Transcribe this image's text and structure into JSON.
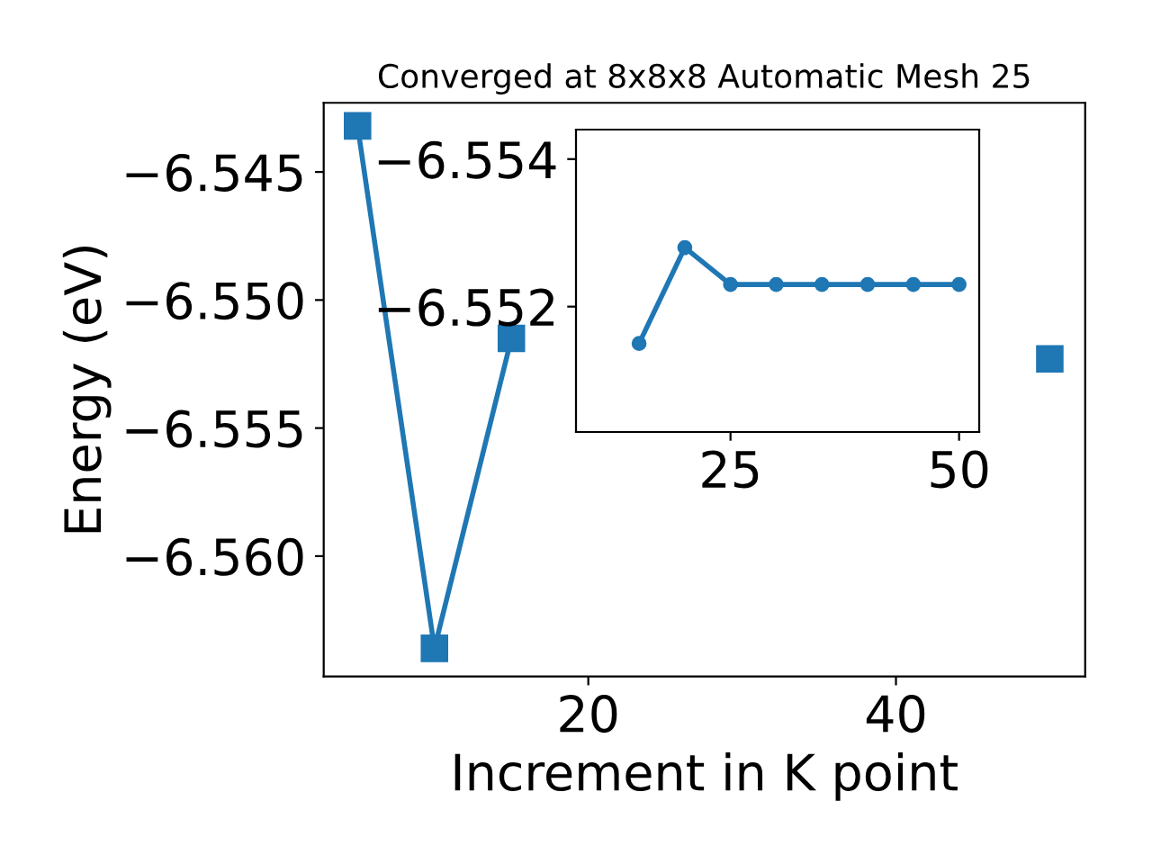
{
  "chart_data": [
    {
      "type": "line",
      "title": "Converged at 8x8x8 Automatic Mesh 25",
      "xlabel": "Increment in K point",
      "ylabel": "Energy (eV)",
      "x": [
        5,
        10,
        15,
        20,
        25,
        30,
        35,
        40,
        45,
        50
      ],
      "series": [
        {
          "color": "#1f77b4",
          "values": [
            -6.5432,
            -6.5636,
            -6.5515,
            null,
            null,
            null,
            null,
            null,
            null,
            -6.5523
          ]
        }
      ],
      "marker": "square",
      "line_style": "solid",
      "grid": false,
      "xlim": [
        2.8,
        52.3
      ],
      "xticks": [
        20,
        40
      ],
      "ylim": [
        -6.5647,
        -6.5423
      ],
      "yticks": [
        {
          "value": -6.545,
          "label": "−6.545"
        },
        {
          "value": -6.55,
          "label": "−6.550"
        },
        {
          "value": -6.555,
          "label": "−6.555"
        },
        {
          "value": -6.56,
          "label": "−6.560"
        }
      ]
    },
    {
      "type": "line",
      "x": [
        15,
        20,
        25,
        30,
        35,
        40,
        45,
        50
      ],
      "series": [
        {
          "color": "#1f77b4",
          "values": [
            -6.5515,
            -6.5528,
            -6.5523,
            -6.5523,
            -6.5523,
            -6.5523,
            -6.5523,
            -6.5523
          ]
        }
      ],
      "marker": "circle",
      "line_style": "solid",
      "grid": false,
      "xlim": [
        8.1,
        52.2
      ],
      "xticks": [
        25,
        50
      ],
      "ylim": [
        -6.5503,
        -6.5544
      ],
      "yticks": [
        {
          "value": -6.554,
          "label": "−6.554"
        },
        {
          "value": -6.552,
          "label": "−6.552"
        }
      ]
    }
  ]
}
